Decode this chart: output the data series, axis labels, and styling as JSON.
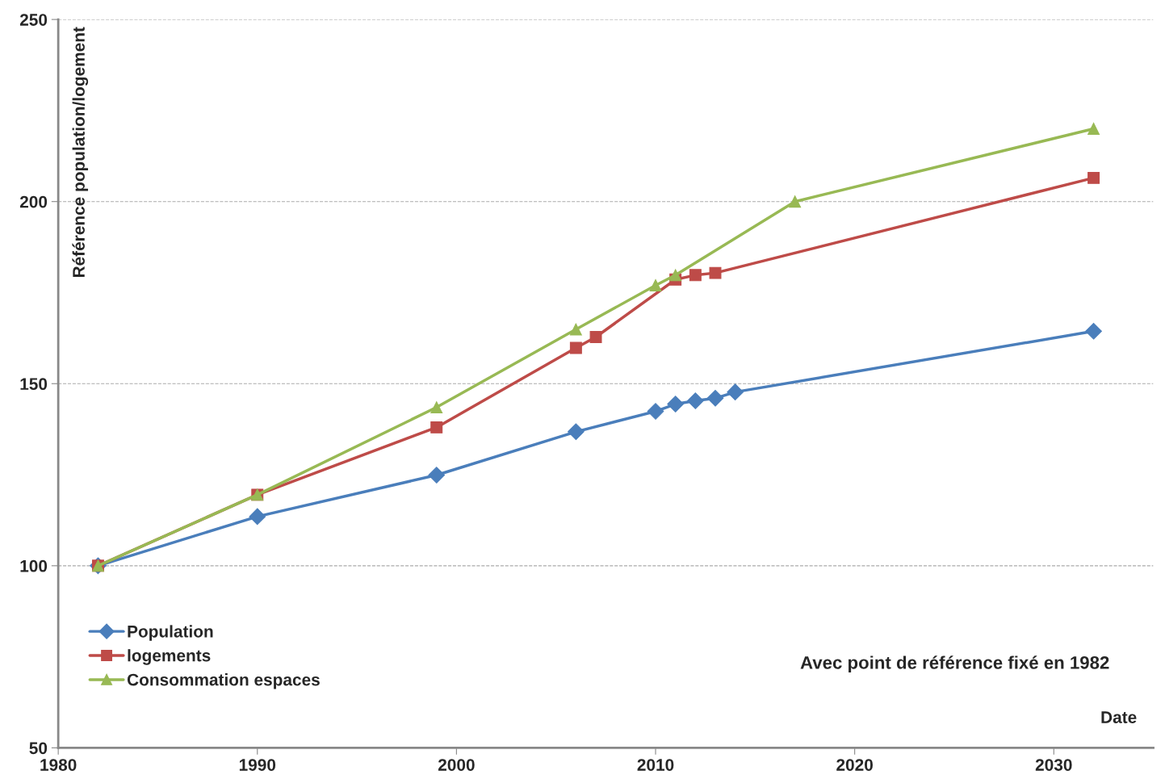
{
  "chart_data": {
    "type": "line",
    "xlabel": "Date",
    "ylabel": "Référence population/logement",
    "xlim": [
      1980,
      2035
    ],
    "xticks": [
      1980,
      1990,
      2000,
      2010,
      2020,
      2030
    ],
    "ylim": [
      50,
      250
    ],
    "yticks": [
      50,
      100,
      150,
      200,
      250
    ],
    "grid": "y",
    "legend": "bottom left",
    "annotations": [
      "Avec point de référence fixé en 1982"
    ],
    "series": [
      {
        "name": "Population",
        "color": "#4a7ebb",
        "marker": "diamond",
        "x": [
          1982,
          1990,
          1999,
          2006,
          2010,
          2011,
          2012,
          2013,
          2014,
          2032
        ],
        "values": [
          100,
          113.5,
          124.9,
          136.8,
          142.4,
          144.4,
          145.3,
          146.0,
          147.7,
          164.4
        ]
      },
      {
        "name": "logements",
        "color": "#be4b48",
        "marker": "square",
        "x": [
          1982,
          1990,
          1999,
          2006,
          2007,
          2011,
          2012,
          2013,
          2032
        ],
        "values": [
          100,
          119.5,
          138.0,
          159.8,
          162.8,
          178.6,
          179.8,
          180.4,
          206.5
        ]
      },
      {
        "name": "Consommation espaces",
        "color": "#98b954",
        "marker": "triangle",
        "x": [
          1982,
          1990,
          1999,
          2006,
          2010,
          2011,
          2017,
          2032
        ],
        "values": [
          100,
          119.5,
          143.5,
          164.9,
          177.0,
          179.8,
          200,
          220
        ]
      }
    ]
  }
}
